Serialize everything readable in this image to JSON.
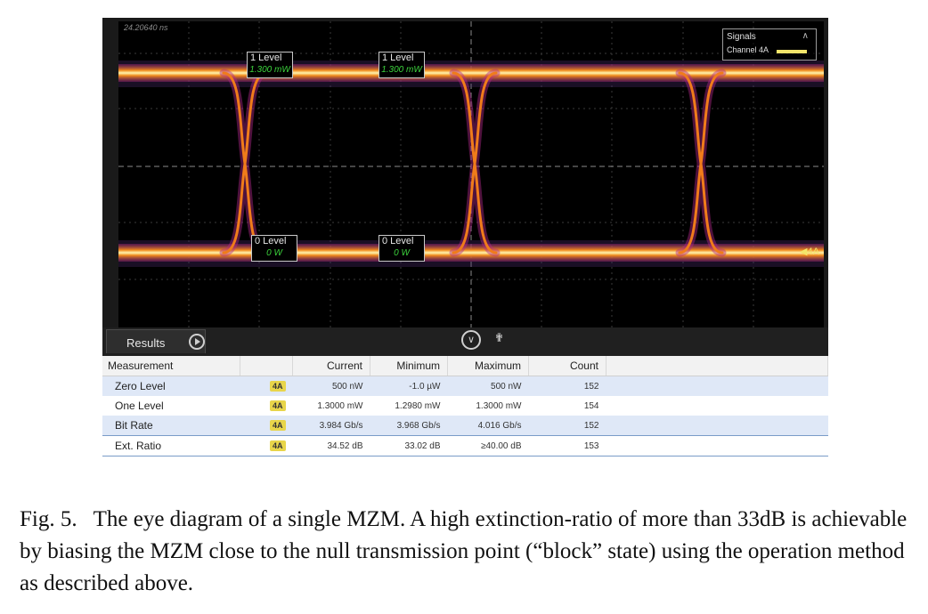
{
  "screen": {
    "timestamp": "24.20640 ns",
    "signals_panel": {
      "title": "Signals",
      "channel": "Channel 4A",
      "trace_color": "#f3e56a"
    },
    "marker": "4A",
    "levels": [
      {
        "title": "1 Level",
        "value": "1.300 mW"
      },
      {
        "title": "1 Level",
        "value": "1.300 mW"
      },
      {
        "title": "0 Level",
        "value": "0 W"
      },
      {
        "title": "0 Level",
        "value": "0 W"
      }
    ]
  },
  "results": {
    "tab_label": "Results",
    "columns": [
      "Measurement",
      "",
      "Current",
      "Minimum",
      "Maximum",
      "Count"
    ],
    "rows": [
      {
        "name": "Zero Level",
        "channel": "4A",
        "current": "500 nW",
        "minimum": "-1.0 µW",
        "maximum": "500 nW",
        "count": "152"
      },
      {
        "name": "One Level",
        "channel": "4A",
        "current": "1.3000 mW",
        "minimum": "1.2980 mW",
        "maximum": "1.3000 mW",
        "count": "154"
      },
      {
        "name": "Bit Rate",
        "channel": "4A",
        "current": "3.984 Gb/s",
        "minimum": "3.968 Gb/s",
        "maximum": "4.016 Gb/s",
        "count": "152"
      },
      {
        "name": "Ext. Ratio",
        "channel": "4A",
        "current": "34.52 dB",
        "minimum": "33.02 dB",
        "maximum": "≥40.00 dB",
        "count": "153"
      }
    ]
  },
  "caption": {
    "label": "Fig. 5.",
    "text": "The eye diagram of a single MZM. A high extinction-ratio of more than 33dB is achievable by biasing the MZM close to the null transmission point (“block” state) using the operation method as described above."
  }
}
